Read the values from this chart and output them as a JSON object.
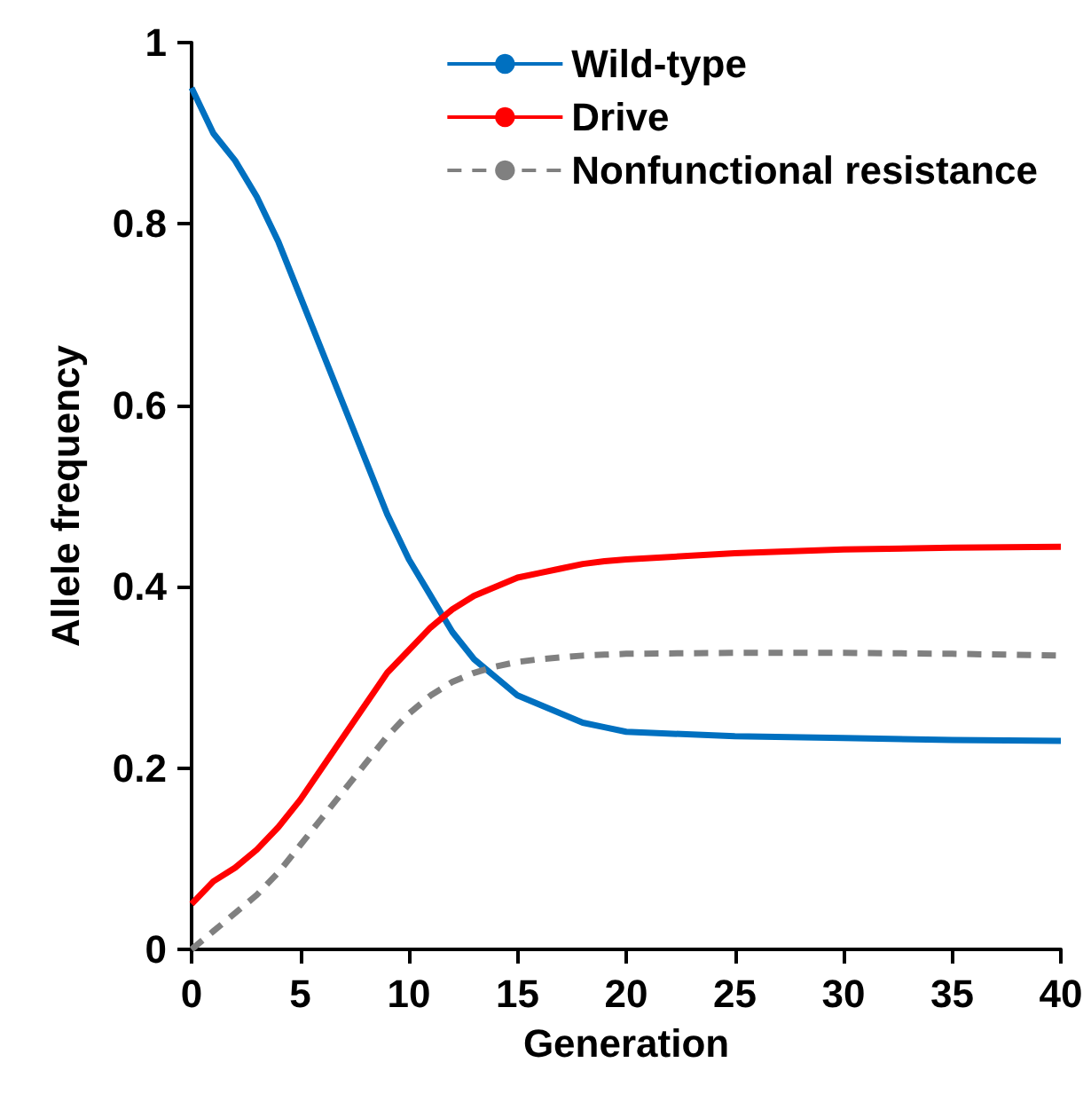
{
  "chart_data": {
    "type": "line",
    "xlabel": "Generation",
    "ylabel": "Allele frequency",
    "x": [
      0,
      1,
      2,
      3,
      4,
      5,
      6,
      7,
      8,
      9,
      10,
      11,
      12,
      13,
      14,
      15,
      16,
      17,
      18,
      19,
      20,
      25,
      30,
      35,
      40
    ],
    "series": [
      {
        "name": "Wild-type",
        "color": "#0070c0",
        "values": [
          0.95,
          0.9,
          0.87,
          0.83,
          0.78,
          0.72,
          0.66,
          0.6,
          0.54,
          0.48,
          0.43,
          0.39,
          0.35,
          0.32,
          0.3,
          0.28,
          0.27,
          0.26,
          0.25,
          0.245,
          0.24,
          0.235,
          0.233,
          0.231,
          0.23
        ]
      },
      {
        "name": "Drive",
        "color": "#ff0000",
        "values": [
          0.05,
          0.075,
          0.09,
          0.11,
          0.135,
          0.165,
          0.2,
          0.235,
          0.27,
          0.305,
          0.33,
          0.355,
          0.375,
          0.39,
          0.4,
          0.41,
          0.415,
          0.42,
          0.425,
          0.428,
          0.43,
          0.437,
          0.441,
          0.443,
          0.444
        ]
      },
      {
        "name": "Nonfunctional resistance",
        "color": "#808080",
        "line_style": "dashed",
        "values": [
          0,
          0.02,
          0.04,
          0.06,
          0.085,
          0.115,
          0.145,
          0.175,
          0.205,
          0.235,
          0.26,
          0.28,
          0.295,
          0.305,
          0.312,
          0.317,
          0.32,
          0.322,
          0.324,
          0.325,
          0.326,
          0.327,
          0.327,
          0.326,
          0.324
        ]
      }
    ],
    "xlim": [
      0,
      40
    ],
    "xticks": [
      0,
      5,
      10,
      15,
      20,
      25,
      30,
      35,
      40
    ],
    "ylim": [
      0,
      1
    ],
    "yticks": [
      0,
      0.2,
      0.4,
      0.6,
      0.8,
      1
    ],
    "grid": false,
    "legend": "top right",
    "marker": "none",
    "line_style": "solid"
  }
}
